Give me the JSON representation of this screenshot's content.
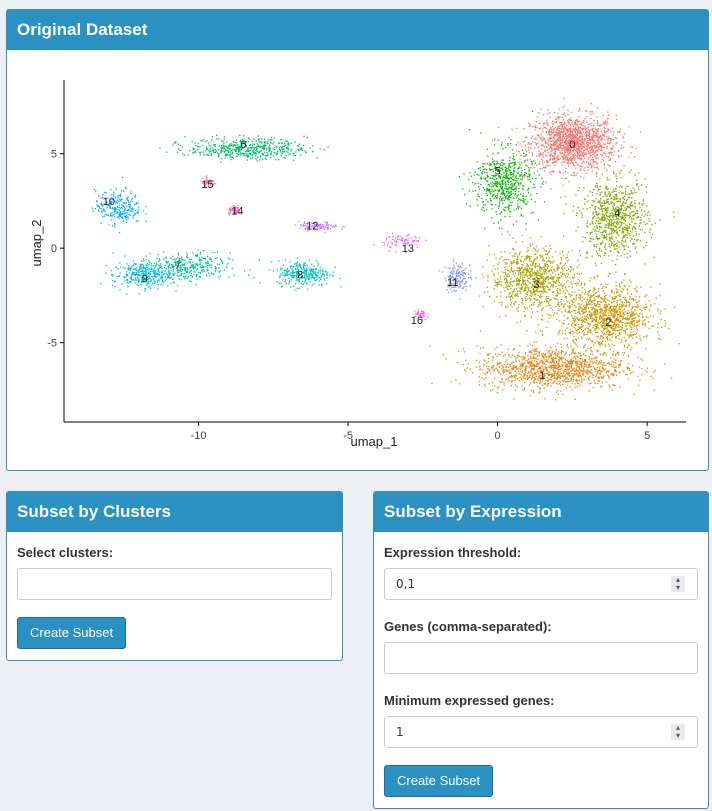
{
  "original_panel": {
    "title": "Original Dataset"
  },
  "chart_data": {
    "type": "scatter",
    "xlabel": "umap_1",
    "ylabel": "umap_2",
    "xlim": [
      -14.5,
      6.3
    ],
    "ylim": [
      -9.2,
      8.9
    ],
    "x_ticks": [
      "-10",
      "-5",
      "0",
      "5"
    ],
    "y_ticks": [
      "5",
      "0",
      "-5"
    ],
    "grid": false,
    "clusters": [
      {
        "label": "0",
        "color": "#F8766D",
        "x": 2.5,
        "y": 5.5
      },
      {
        "label": "1",
        "color": "#E68613",
        "x": 1.5,
        "y": -6.7
      },
      {
        "label": "2",
        "color": "#CD9600",
        "x": 3.7,
        "y": -3.9
      },
      {
        "label": "3",
        "color": "#ABA300",
        "x": 1.3,
        "y": -1.9
      },
      {
        "label": "4",
        "color": "#7CAE00",
        "x": 4.0,
        "y": 1.9
      },
      {
        "label": "5",
        "color": "#0CB702",
        "x": 0.0,
        "y": 4.1
      },
      {
        "label": "6",
        "color": "#00BE67",
        "x": -8.5,
        "y": 5.5
      },
      {
        "label": "7",
        "color": "#00C19A",
        "x": -10.7,
        "y": -0.9
      },
      {
        "label": "8",
        "color": "#00BFC4",
        "x": -6.6,
        "y": -1.4
      },
      {
        "label": "9",
        "color": "#00B8E7",
        "x": -11.8,
        "y": -1.6
      },
      {
        "label": "10",
        "color": "#00A9FF",
        "x": -13.0,
        "y": 2.5
      },
      {
        "label": "11",
        "color": "#8494FF",
        "x": -1.5,
        "y": -1.8
      },
      {
        "label": "12",
        "color": "#C77CFF",
        "x": -6.2,
        "y": 1.2
      },
      {
        "label": "13",
        "color": "#ED68ED",
        "x": -3.0,
        "y": 0.0
      },
      {
        "label": "14",
        "color": "#FF61CC",
        "x": -8.7,
        "y": 2.0
      },
      {
        "label": "15",
        "color": "#FF68A1",
        "x": -9.7,
        "y": 3.4
      },
      {
        "label": "16",
        "color": "#F564E3",
        "x": -2.7,
        "y": -3.8
      }
    ]
  },
  "clusters_panel": {
    "title": "Subset by Clusters",
    "select_label": "Select clusters:",
    "select_value": "",
    "button_label": "Create Subset"
  },
  "expression_panel": {
    "title": "Subset by Expression",
    "threshold_label": "Expression threshold:",
    "threshold_value": "0,1",
    "genes_label": "Genes (comma-separated):",
    "genes_value": "",
    "min_genes_label": "Minimum expressed genes:",
    "min_genes_value": "1",
    "button_label": "Create Subset"
  }
}
